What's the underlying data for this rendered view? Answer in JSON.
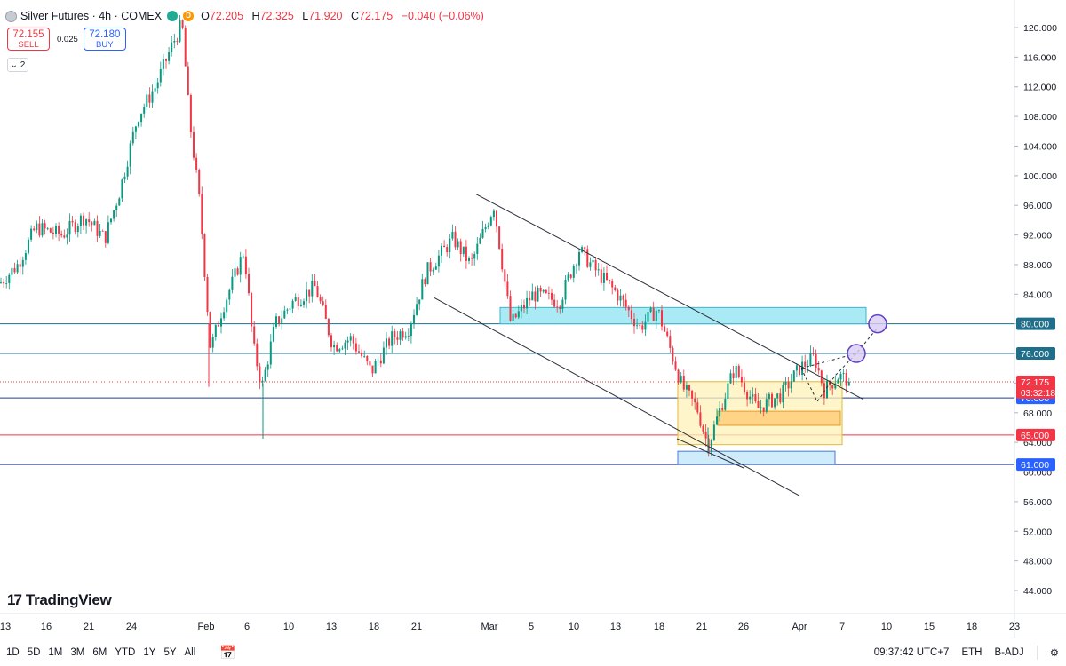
{
  "header": {
    "symbol": "Silver Futures · 4h · COMEX",
    "open_label": "O",
    "open": "72.205",
    "high_label": "H",
    "high": "72.325",
    "low_label": "L",
    "low": "71.920",
    "close_label": "C",
    "close": "72.175",
    "change": "−0.040 (−0.06%)"
  },
  "trade": {
    "sell_price": "72.155",
    "sell_label": "SELL",
    "spread": "0.025",
    "buy_price": "72.180",
    "buy_label": "BUY"
  },
  "indicators_count": "2",
  "logo": "TradingView",
  "bottom_bar": {
    "ranges": [
      "1D",
      "5D",
      "1M",
      "3M",
      "6M",
      "YTD",
      "1Y",
      "5Y",
      "All"
    ],
    "clock": "09:37:42 UTC+7",
    "session": "ETH",
    "adjust": "B-ADJ"
  },
  "colors": {
    "up": "#089981",
    "down": "#f23645",
    "level": "#1f6f8b",
    "accent": "#2962ff"
  },
  "chart_data": {
    "type": "candlestick",
    "title": "Silver Futures · 4h · COMEX",
    "ylim": [
      44,
      121
    ],
    "y_ticks": [
      "44.000",
      "48.000",
      "52.000",
      "56.000",
      "60.000",
      "64.000",
      "68.000",
      "72.000",
      "76.000",
      "80.000",
      "84.000",
      "88.000",
      "92.000",
      "96.000",
      "100.000",
      "104.000",
      "108.000",
      "112.000",
      "116.000",
      "120.000"
    ],
    "x_ticks": [
      "13",
      "16",
      "21",
      "24",
      "Feb",
      "6",
      "10",
      "13",
      "18",
      "21",
      "Mar",
      "5",
      "10",
      "13",
      "18",
      "21",
      "26",
      "Apr",
      "7",
      "10",
      "15",
      "18",
      "23"
    ],
    "grid": false,
    "price_keypoints": [
      {
        "x": 0,
        "y": 85.5
      },
      {
        "x": 20,
        "y": 88.0
      },
      {
        "x": 40,
        "y": 93.0
      },
      {
        "x": 70,
        "y": 92.0
      },
      {
        "x": 95,
        "y": 94.5
      },
      {
        "x": 118,
        "y": 91.5
      },
      {
        "x": 135,
        "y": 98.0
      },
      {
        "x": 155,
        "y": 108.0
      },
      {
        "x": 175,
        "y": 112.0
      },
      {
        "x": 195,
        "y": 118.0
      },
      {
        "x": 205,
        "y": 120.5
      },
      {
        "x": 213,
        "y": 108.0
      },
      {
        "x": 225,
        "y": 96.0
      },
      {
        "x": 237,
        "y": 76.5
      },
      {
        "x": 250,
        "y": 82.0
      },
      {
        "x": 263,
        "y": 86.0
      },
      {
        "x": 275,
        "y": 90.0
      },
      {
        "x": 285,
        "y": 77.0
      },
      {
        "x": 295,
        "y": 71.5
      },
      {
        "x": 310,
        "y": 80.0
      },
      {
        "x": 330,
        "y": 83.0
      },
      {
        "x": 355,
        "y": 85.0
      },
      {
        "x": 375,
        "y": 77.0
      },
      {
        "x": 395,
        "y": 78.0
      },
      {
        "x": 418,
        "y": 73.5
      },
      {
        "x": 440,
        "y": 78.0
      },
      {
        "x": 460,
        "y": 79.5
      },
      {
        "x": 480,
        "y": 87.0
      },
      {
        "x": 510,
        "y": 91.5
      },
      {
        "x": 530,
        "y": 88.0
      },
      {
        "x": 556,
        "y": 96.0
      },
      {
        "x": 575,
        "y": 80.0
      },
      {
        "x": 600,
        "y": 84.0
      },
      {
        "x": 630,
        "y": 83.0
      },
      {
        "x": 652,
        "y": 90.0
      },
      {
        "x": 672,
        "y": 87.0
      },
      {
        "x": 695,
        "y": 84.0
      },
      {
        "x": 720,
        "y": 79.5
      },
      {
        "x": 740,
        "y": 82.0
      },
      {
        "x": 768,
        "y": 71.5
      },
      {
        "x": 785,
        "y": 68.5
      },
      {
        "x": 797,
        "y": 63.5
      },
      {
        "x": 812,
        "y": 69.0
      },
      {
        "x": 827,
        "y": 74.0
      },
      {
        "x": 852,
        "y": 68.5
      },
      {
        "x": 880,
        "y": 70.5
      },
      {
        "x": 900,
        "y": 74.0
      },
      {
        "x": 917,
        "y": 75.5
      },
      {
        "x": 928,
        "y": 71.0
      },
      {
        "x": 944,
        "y": 73.0
      },
      {
        "x": 958,
        "y": 72.2
      }
    ],
    "horizontal_levels": [
      {
        "value": 80,
        "label": "80.000",
        "color": "#1f6f8b",
        "badge": "#1f6f8b"
      },
      {
        "value": 76,
        "label": "76.000",
        "color": "#1f6f8b",
        "badge": "#1f6f8b"
      },
      {
        "value": 70,
        "label": "70.000",
        "color": "#1f3f9e",
        "badge": "#2962ff"
      },
      {
        "value": 65,
        "label": "65.000",
        "color": "#f23645",
        "badge": "#f23645"
      },
      {
        "value": 61,
        "label": "61.000",
        "color": "#1f3f9e",
        "badge": "#2962ff"
      }
    ],
    "last_price": {
      "value": 72.175,
      "label": "72.175",
      "countdown": "03:32:18"
    },
    "channel_lines": [
      {
        "from": {
          "x": 536,
          "y": 97.5
        },
        "to": {
          "x": 972,
          "y": 69.8
        }
      },
      {
        "from": {
          "x": 489,
          "y": 83.5
        },
        "to": {
          "x": 900,
          "y": 56.8
        }
      },
      {
        "from": {
          "x": 762,
          "y": 64.5
        },
        "to": {
          "x": 838,
          "y": 60.5
        }
      }
    ],
    "zones": [
      {
        "x1": 563,
        "x2": 975,
        "y1": 80.0,
        "y2": 82.2,
        "fill": "#8ee3f0",
        "stroke": "#3fb6c8"
      },
      {
        "x1": 763,
        "x2": 948,
        "y1": 63.7,
        "y2": 72.2,
        "fill": "#fff2b8",
        "stroke": "#e2b93b"
      },
      {
        "x1": 808,
        "x2": 946,
        "y1": 66.3,
        "y2": 68.2,
        "fill": "#ffc870",
        "stroke": "#e59a2b"
      },
      {
        "x1": 763,
        "x2": 940,
        "y1": 61.0,
        "y2": 62.8,
        "fill": "#bde6f7",
        "stroke": "#4d79d8"
      }
    ],
    "projection": [
      {
        "x": 902,
        "y": 74.0
      },
      {
        "x": 920,
        "y": 69.5
      },
      {
        "x": 940,
        "y": 73.0
      },
      {
        "x": 964,
        "y": 76.0
      },
      {
        "x": 988,
        "y": 79.5
      }
    ],
    "projection_branch": [
      {
        "x": 902,
        "y": 74.0
      },
      {
        "x": 964,
        "y": 76.0
      }
    ],
    "targets": [
      {
        "x": 964,
        "y": 76.0
      },
      {
        "x": 988,
        "y": 80.0
      }
    ]
  }
}
